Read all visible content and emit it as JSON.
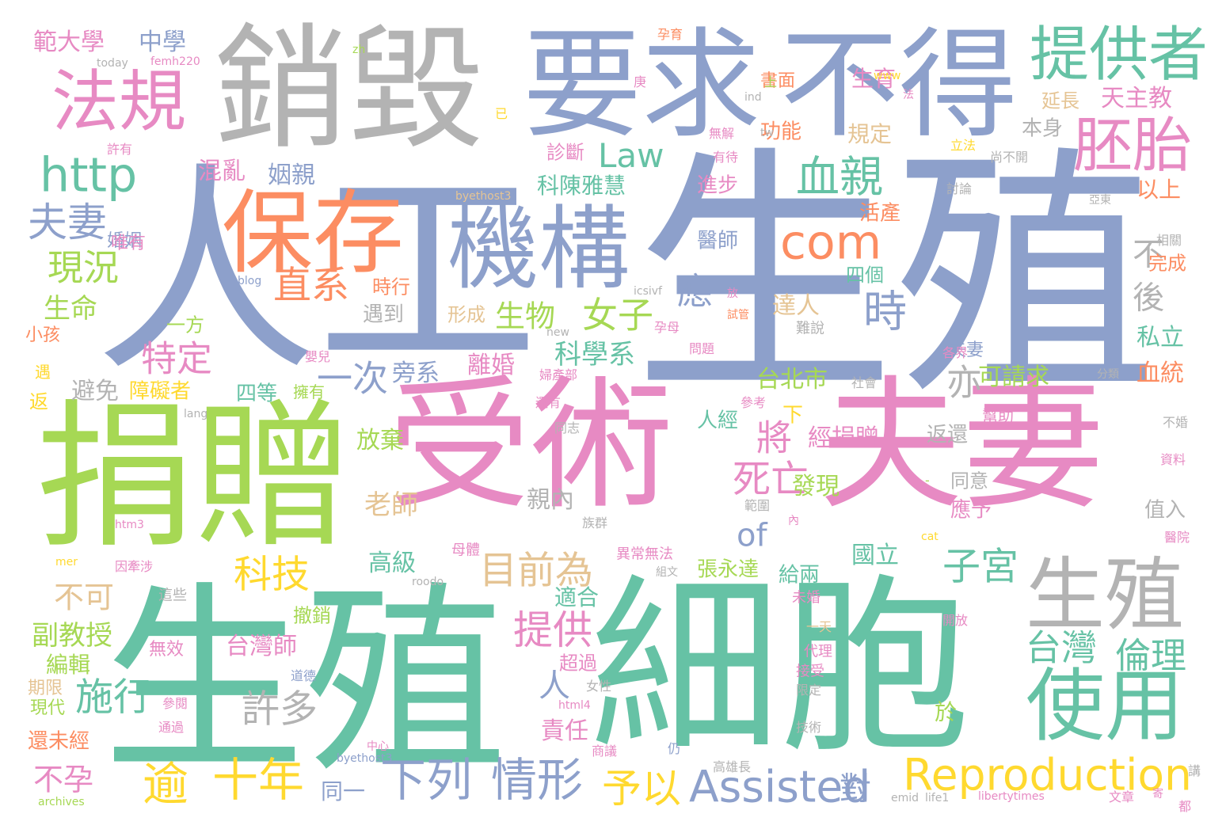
{
  "palette": {
    "blue": "#8da0cb",
    "green": "#66c2a5",
    "orange": "#fc8d62",
    "pink": "#e78ac3",
    "lime": "#a6d854",
    "yellow": "#ffd92f",
    "tan": "#e5c494",
    "gray": "#b3b3b3"
  },
  "words": [
    {
      "text": "生殖",
      "color": "blue"
    },
    {
      "text": "人工",
      "color": "blue"
    },
    {
      "text": "受術",
      "color": "pink"
    },
    {
      "text": "夫妻",
      "color": "pink"
    },
    {
      "text": "生殖",
      "color": "green"
    },
    {
      "text": "細胞",
      "color": "green"
    },
    {
      "text": "捐贈",
      "color": "lime"
    },
    {
      "text": "銷毀",
      "color": "gray"
    },
    {
      "text": "要求",
      "color": "blue"
    },
    {
      "text": "不得",
      "color": "blue"
    },
    {
      "text": "保存",
      "color": "orange"
    },
    {
      "text": "機構",
      "color": "blue"
    },
    {
      "text": "法規",
      "color": "pink"
    },
    {
      "text": "生殖",
      "color": "gray"
    },
    {
      "text": "使用",
      "color": "green"
    },
    {
      "text": "提供者",
      "color": "green"
    },
    {
      "text": "胚胎",
      "color": "pink"
    },
    {
      "text": "http",
      "color": "green"
    },
    {
      "text": "com",
      "color": "orange"
    },
    {
      "text": "血親",
      "color": "green"
    },
    {
      "text": "Reproduction",
      "color": "yellow"
    },
    {
      "text": "Assisted",
      "color": "blue"
    },
    {
      "text": "Law",
      "color": "green"
    },
    {
      "text": "夫妻",
      "color": "blue"
    },
    {
      "text": "現況",
      "color": "lime"
    },
    {
      "text": "直系",
      "color": "orange"
    },
    {
      "text": "女子",
      "color": "lime"
    },
    {
      "text": "應",
      "color": "blue"
    },
    {
      "text": "時",
      "color": "blue"
    },
    {
      "text": "不",
      "color": "gray"
    },
    {
      "text": "後",
      "color": "gray"
    },
    {
      "text": "逾",
      "color": "yellow"
    },
    {
      "text": "十年",
      "color": "yellow"
    },
    {
      "text": "下列",
      "color": "blue"
    },
    {
      "text": "情形",
      "color": "blue"
    },
    {
      "text": "予以",
      "color": "yellow"
    },
    {
      "text": "對",
      "color": "blue"
    },
    {
      "text": "目前為",
      "color": "tan"
    },
    {
      "text": "of",
      "color": "blue"
    },
    {
      "text": "科技",
      "color": "yellow"
    },
    {
      "text": "提供",
      "color": "pink"
    },
    {
      "text": "子宮",
      "color": "green"
    },
    {
      "text": "台灣",
      "color": "green"
    },
    {
      "text": "倫理",
      "color": "green"
    },
    {
      "text": "施行",
      "color": "green"
    },
    {
      "text": "許多",
      "color": "gray"
    },
    {
      "text": "死亡",
      "color": "pink"
    },
    {
      "text": "將",
      "color": "pink"
    },
    {
      "text": "一次",
      "color": "blue"
    },
    {
      "text": "亦",
      "color": "gray"
    },
    {
      "text": "特定",
      "color": "pink"
    },
    {
      "text": "生命",
      "color": "lime"
    },
    {
      "text": "生物",
      "color": "lime"
    },
    {
      "text": "範大學",
      "color": "pink"
    },
    {
      "text": "中學",
      "color": "blue"
    },
    {
      "text": "天主教",
      "color": "pink"
    },
    {
      "text": "科陳雅慧",
      "color": "green"
    },
    {
      "text": "姻親",
      "color": "blue"
    },
    {
      "text": "混亂",
      "color": "pink"
    },
    {
      "text": "功能",
      "color": "orange"
    },
    {
      "text": "規定",
      "color": "tan"
    },
    {
      "text": "書面",
      "color": "orange"
    },
    {
      "text": "生育",
      "color": "pink"
    },
    {
      "text": "延長",
      "color": "tan"
    },
    {
      "text": "本身",
      "color": "gray"
    },
    {
      "text": "診斷",
      "color": "pink"
    },
    {
      "text": "進步",
      "color": "pink"
    },
    {
      "text": "以上",
      "color": "orange"
    },
    {
      "text": "活產",
      "color": "orange"
    },
    {
      "text": "醫師",
      "color": "blue"
    },
    {
      "text": "四個",
      "color": "green"
    },
    {
      "text": "完成",
      "color": "orange"
    },
    {
      "text": "私立",
      "color": "green"
    },
    {
      "text": "血統",
      "color": "orange"
    },
    {
      "text": "達人",
      "color": "tan"
    },
    {
      "text": "科學系",
      "color": "green"
    },
    {
      "text": "旁系",
      "color": "blue"
    },
    {
      "text": "離婚",
      "color": "pink"
    },
    {
      "text": "可請求",
      "color": "lime"
    },
    {
      "text": "台北市",
      "color": "lime"
    },
    {
      "text": "下",
      "color": "yellow"
    },
    {
      "text": "人經",
      "color": "green"
    },
    {
      "text": "經捐贈",
      "color": "pink"
    },
    {
      "text": "返還",
      "color": "gray"
    },
    {
      "text": "幫助",
      "color": "pink"
    },
    {
      "text": "同意",
      "color": "gray"
    },
    {
      "text": "應予",
      "color": "pink"
    },
    {
      "text": "值入",
      "color": "gray"
    },
    {
      "text": "發現",
      "color": "lime"
    },
    {
      "text": "親內",
      "color": "gray"
    },
    {
      "text": "老師",
      "color": "tan"
    },
    {
      "text": "國立",
      "color": "green"
    },
    {
      "text": "高級",
      "color": "green"
    },
    {
      "text": "給兩",
      "color": "green"
    },
    {
      "text": "張永達",
      "color": "lime"
    },
    {
      "text": "適合",
      "color": "green"
    },
    {
      "text": "避免",
      "color": "gray"
    },
    {
      "text": "障礙者",
      "color": "yellow"
    },
    {
      "text": "四等",
      "color": "green"
    },
    {
      "text": "擁有",
      "color": "lime"
    },
    {
      "text": "放棄",
      "color": "lime"
    },
    {
      "text": "不可",
      "color": "tan"
    },
    {
      "text": "副教授",
      "color": "lime"
    },
    {
      "text": "編輯",
      "color": "lime"
    },
    {
      "text": "期限",
      "color": "tan"
    },
    {
      "text": "現代",
      "color": "lime"
    },
    {
      "text": "還未經",
      "color": "orange"
    },
    {
      "text": "不孕",
      "color": "pink"
    },
    {
      "text": "同一",
      "color": "blue"
    },
    {
      "text": "台灣師",
      "color": "pink"
    },
    {
      "text": "無效",
      "color": "pink"
    },
    {
      "text": "撤銷",
      "color": "lime"
    },
    {
      "text": "超過",
      "color": "pink"
    },
    {
      "text": "責任",
      "color": "pink"
    },
    {
      "text": "於",
      "color": "lime"
    },
    {
      "text": "人",
      "color": "blue"
    },
    {
      "text": "夫妻",
      "color": "blue"
    },
    {
      "text": "婚姻",
      "color": "blue"
    },
    {
      "text": "唯有",
      "color": "pink"
    },
    {
      "text": "小孩",
      "color": "orange"
    },
    {
      "text": "一方",
      "color": "lime"
    },
    {
      "text": "遇到",
      "color": "gray"
    },
    {
      "text": "形成",
      "color": "tan"
    },
    {
      "text": "時行",
      "color": "orange"
    },
    {
      "text": "返",
      "color": "yellow"
    },
    {
      "text": "遇",
      "color": "yellow"
    },
    {
      "text": "today",
      "color": "gray"
    },
    {
      "text": "zh",
      "color": "lime"
    },
    {
      "text": "femh220",
      "color": "pink"
    },
    {
      "text": "孕育",
      "color": "orange"
    },
    {
      "text": "上",
      "color": "lime"
    },
    {
      "text": "庚",
      "color": "pink"
    },
    {
      "text": "www",
      "color": "yellow"
    },
    {
      "text": "ind",
      "color": "gray"
    },
    {
      "text": "法",
      "color": "pink"
    },
    {
      "text": "已",
      "color": "yellow"
    },
    {
      "text": "無解",
      "color": "pink"
    },
    {
      "text": "tw",
      "color": "gray"
    },
    {
      "text": "許有",
      "color": "pink"
    },
    {
      "text": "有待",
      "color": "pink"
    },
    {
      "text": "立法",
      "color": "yellow"
    },
    {
      "text": "尚不開",
      "color": "gray"
    },
    {
      "text": "討論",
      "color": "gray"
    },
    {
      "text": "亞東",
      "color": "gray"
    },
    {
      "text": "byethost3",
      "color": "tan"
    },
    {
      "text": "blog",
      "color": "blue"
    },
    {
      "text": "icsivf",
      "color": "gray"
    },
    {
      "text": "相關",
      "color": "gray"
    },
    {
      "text": "放",
      "color": "pink"
    },
    {
      "text": "試管",
      "color": "orange"
    },
    {
      "text": "孕母",
      "color": "pink"
    },
    {
      "text": "new",
      "color": "gray"
    },
    {
      "text": "難說",
      "color": "gray"
    },
    {
      "text": "問題",
      "color": "pink"
    },
    {
      "text": "嬰兒",
      "color": "pink"
    },
    {
      "text": "婦產部",
      "color": "pink"
    },
    {
      "text": "社會",
      "color": "gray"
    },
    {
      "text": "各界",
      "color": "pink"
    },
    {
      "text": "分類",
      "color": "gray"
    },
    {
      "text": "還有",
      "color": "pink"
    },
    {
      "text": "lang",
      "color": "gray"
    },
    {
      "text": "參考",
      "color": "pink"
    },
    {
      "text": "同志",
      "color": "gray"
    },
    {
      "text": "不婚",
      "color": "gray"
    },
    {
      "text": "資料",
      "color": "pink"
    },
    {
      "text": "-",
      "color": "lime"
    },
    {
      "text": "範圍",
      "color": "gray"
    },
    {
      "text": "htm3",
      "color": "pink"
    },
    {
      "text": "族群",
      "color": "gray"
    },
    {
      "text": "內",
      "color": "pink"
    },
    {
      "text": "cat",
      "color": "yellow"
    },
    {
      "text": "醫院",
      "color": "pink"
    },
    {
      "text": "mer",
      "color": "yellow"
    },
    {
      "text": "因牽涉",
      "color": "pink"
    },
    {
      "text": "異常無法",
      "color": "pink"
    },
    {
      "text": "母體",
      "color": "pink"
    },
    {
      "text": "組文",
      "color": "gray"
    },
    {
      "text": "roodo",
      "color": "gray"
    },
    {
      "text": "這些",
      "color": "gray"
    },
    {
      "text": "未婚",
      "color": "pink"
    },
    {
      "text": "開放",
      "color": "pink"
    },
    {
      "text": "一天",
      "color": "tan"
    },
    {
      "text": "代理",
      "color": "pink"
    },
    {
      "text": "接受",
      "color": "pink"
    },
    {
      "text": "限定",
      "color": "gray"
    },
    {
      "text": "道德",
      "color": "blue"
    },
    {
      "text": "女性",
      "color": "gray"
    },
    {
      "text": "html4",
      "color": "pink"
    },
    {
      "text": "參閱",
      "color": "pink"
    },
    {
      "text": "通過",
      "color": "pink"
    },
    {
      "text": "技術",
      "color": "gray"
    },
    {
      "text": "中心",
      "color": "pink"
    },
    {
      "text": "仍",
      "color": "blue"
    },
    {
      "text": "商議",
      "color": "pink"
    },
    {
      "text": "byethost3",
      "color": "blue"
    },
    {
      "text": "高雄長",
      "color": "gray"
    },
    {
      "text": "emid",
      "color": "gray"
    },
    {
      "text": "life1",
      "color": "gray"
    },
    {
      "text": "libertytimes",
      "color": "pink"
    },
    {
      "text": "文章",
      "color": "pink"
    },
    {
      "text": "講",
      "color": "gray"
    },
    {
      "text": "寄",
      "color": "pink"
    },
    {
      "text": "都",
      "color": "pink"
    },
    {
      "text": "archives",
      "color": "lime"
    }
  ]
}
